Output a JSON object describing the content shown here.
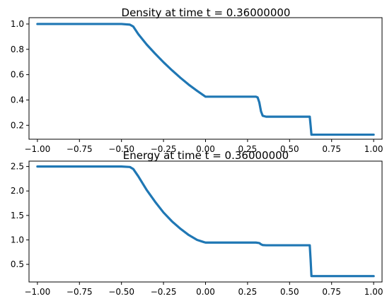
{
  "chart_data": [
    {
      "type": "line",
      "title": "Density at time t =      0.36000000",
      "xlabel": "",
      "ylabel": "",
      "xlim": [
        -1.05,
        1.05
      ],
      "ylim": [
        0.09,
        1.05
      ],
      "x_ticks": [
        -1.0,
        -0.75,
        -0.5,
        -0.25,
        0.0,
        0.25,
        0.5,
        0.75,
        1.0
      ],
      "x_tick_labels": [
        "−1.00",
        "−0.75",
        "−0.50",
        "−0.25",
        "0.00",
        "0.25",
        "0.50",
        "0.75",
        "1.00"
      ],
      "y_ticks": [
        0.2,
        0.4,
        0.6,
        0.8,
        1.0
      ],
      "y_tick_labels": [
        "0.2",
        "0.4",
        "0.6",
        "0.8",
        "1.0"
      ],
      "grid": false,
      "color": "#1f77b4",
      "series": [
        {
          "x": [
            -1.0,
            -0.5,
            -0.45,
            -0.43,
            -0.4,
            -0.35,
            -0.3,
            -0.25,
            -0.2,
            -0.15,
            -0.1,
            -0.05,
            -0.01,
            0.0,
            0.05,
            0.1,
            0.2,
            0.3,
            0.31,
            0.32,
            0.33,
            0.34,
            0.36,
            0.4,
            0.5,
            0.62,
            0.625,
            0.63,
            0.7,
            0.8,
            0.9,
            1.0
          ],
          "y": [
            1.0,
            1.0,
            0.995,
            0.98,
            0.92,
            0.838,
            0.766,
            0.698,
            0.635,
            0.576,
            0.521,
            0.472,
            0.435,
            0.426,
            0.426,
            0.426,
            0.426,
            0.426,
            0.42,
            0.38,
            0.31,
            0.275,
            0.268,
            0.268,
            0.268,
            0.268,
            0.2,
            0.126,
            0.126,
            0.126,
            0.126,
            0.126
          ]
        }
      ]
    },
    {
      "type": "line",
      "title": "Energy at time t =      0.36000000",
      "xlabel": "",
      "ylabel": "",
      "xlim": [
        -1.05,
        1.05
      ],
      "ylim": [
        0.14,
        2.61
      ],
      "x_ticks": [
        -1.0,
        -0.75,
        -0.5,
        -0.25,
        0.0,
        0.25,
        0.5,
        0.75,
        1.0
      ],
      "x_tick_labels": [
        "−1.00",
        "−0.75",
        "−0.50",
        "−0.25",
        "0.00",
        "0.25",
        "0.50",
        "0.75",
        "1.00"
      ],
      "y_ticks": [
        0.5,
        1.0,
        1.5,
        2.0,
        2.5
      ],
      "y_tick_labels": [
        "0.5",
        "1.0",
        "1.5",
        "2.0",
        "2.5"
      ],
      "grid": false,
      "color": "#1f77b4",
      "series": [
        {
          "x": [
            -1.0,
            -0.5,
            -0.45,
            -0.43,
            -0.4,
            -0.35,
            -0.3,
            -0.25,
            -0.2,
            -0.15,
            -0.1,
            -0.05,
            -0.01,
            0.0,
            0.05,
            0.1,
            0.2,
            0.3,
            0.32,
            0.33,
            0.34,
            0.36,
            0.4,
            0.5,
            0.62,
            0.625,
            0.63,
            0.7,
            0.8,
            0.9,
            1.0
          ],
          "y": [
            2.5,
            2.5,
            2.49,
            2.45,
            2.3,
            2.02,
            1.78,
            1.56,
            1.38,
            1.23,
            1.1,
            1.0,
            0.955,
            0.945,
            0.945,
            0.945,
            0.945,
            0.945,
            0.935,
            0.91,
            0.895,
            0.89,
            0.89,
            0.89,
            0.89,
            0.6,
            0.26,
            0.26,
            0.26,
            0.26,
            0.26
          ]
        }
      ]
    }
  ]
}
